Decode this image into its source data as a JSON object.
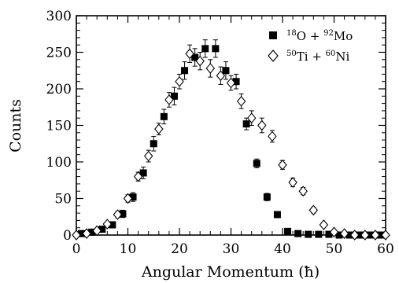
{
  "chart_data": {
    "type": "scatter",
    "title": "",
    "xlabel": "Angular Momentum (ħ)",
    "ylabel": "Counts",
    "xlim": [
      0,
      60
    ],
    "ylim": [
      0,
      300
    ],
    "xticks": [
      0,
      10,
      20,
      30,
      40,
      50,
      60
    ],
    "yticks": [
      0,
      50,
      100,
      150,
      200,
      250,
      300
    ],
    "grid": false,
    "legend_position": "top-right",
    "series": [
      {
        "name": "18O + 92Mo",
        "legend": {
          "a_mass": "18",
          "a_sym": "O",
          "b_mass": "92",
          "b_sym": "Mo"
        },
        "marker": "filled-square",
        "color": "#000000",
        "x": [
          1,
          3,
          5,
          7,
          9,
          11,
          13,
          15,
          17,
          19,
          21,
          23,
          25,
          27,
          29,
          31,
          33,
          35,
          37,
          39,
          41,
          43,
          45,
          47,
          49,
          51,
          53,
          55,
          57,
          59
        ],
        "y": [
          2,
          4,
          8,
          14,
          29,
          52,
          85,
          125,
          162,
          190,
          225,
          243,
          255,
          255,
          225,
          210,
          152,
          98,
          52,
          28,
          5,
          2,
          1,
          1,
          1,
          0,
          0,
          0,
          0,
          0
        ],
        "err": [
          1,
          2,
          3,
          4,
          5,
          6,
          8,
          10,
          10,
          12,
          12,
          12,
          12,
          12,
          12,
          10,
          8,
          6,
          5,
          4,
          2,
          1,
          1,
          1,
          1,
          0,
          0,
          0,
          0,
          0
        ]
      },
      {
        "name": "50Ti + 60Ni",
        "legend": {
          "a_mass": "50",
          "a_sym": "Ti",
          "b_mass": "60",
          "b_sym": "Ni"
        },
        "marker": "open-diamond",
        "color": "#000000",
        "x": [
          0,
          2,
          4,
          6,
          8,
          10,
          12,
          14,
          16,
          18,
          20,
          22,
          24,
          26,
          28,
          30,
          32,
          34,
          36,
          38,
          40,
          42,
          44,
          46,
          48,
          50,
          52,
          54,
          56,
          58,
          60
        ],
        "y": [
          0,
          2,
          6,
          15,
          28,
          50,
          80,
          108,
          145,
          185,
          210,
          248,
          238,
          228,
          218,
          208,
          183,
          160,
          150,
          135,
          96,
          72,
          60,
          34,
          14,
          4,
          2,
          0,
          0,
          0,
          0
        ],
        "err": [
          0,
          1,
          2,
          3,
          4,
          5,
          6,
          8,
          8,
          10,
          10,
          12,
          12,
          12,
          12,
          10,
          10,
          10,
          10,
          8,
          6,
          6,
          5,
          4,
          3,
          2,
          1,
          0,
          0,
          0,
          0
        ]
      }
    ]
  }
}
